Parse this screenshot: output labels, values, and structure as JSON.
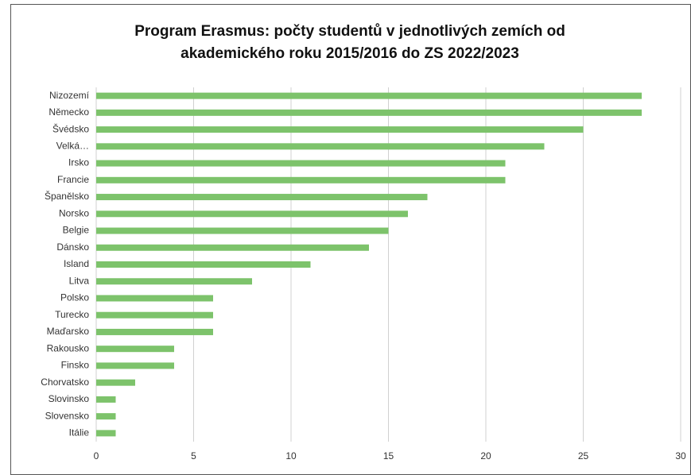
{
  "chart_data": {
    "type": "bar",
    "orientation": "horizontal",
    "title": "Program Erasmus: počty studentů v jednotlivých zemích od akademického roku 2015/2016 do ZS 2022/2023",
    "categories": [
      "Nizozemí",
      "Německo",
      "Švédsko",
      "Velká…",
      "Irsko",
      "Francie",
      "Španělsko",
      "Norsko",
      "Belgie",
      "Dánsko",
      "Island",
      "Litva",
      "Polsko",
      "Turecko",
      "Maďarsko",
      "Rakousko",
      "Finsko",
      "Chorvatsko",
      "Slovinsko",
      "Slovensko",
      "Itálie"
    ],
    "values": [
      28,
      28,
      25,
      23,
      21,
      21,
      17,
      16,
      15,
      14,
      11,
      8,
      6,
      6,
      6,
      4,
      4,
      2,
      1,
      1,
      1
    ],
    "color": "#7dc36b",
    "xlim": [
      0,
      30
    ],
    "xticks": [
      0,
      5,
      10,
      15,
      20,
      25,
      30
    ],
    "grid": true
  }
}
